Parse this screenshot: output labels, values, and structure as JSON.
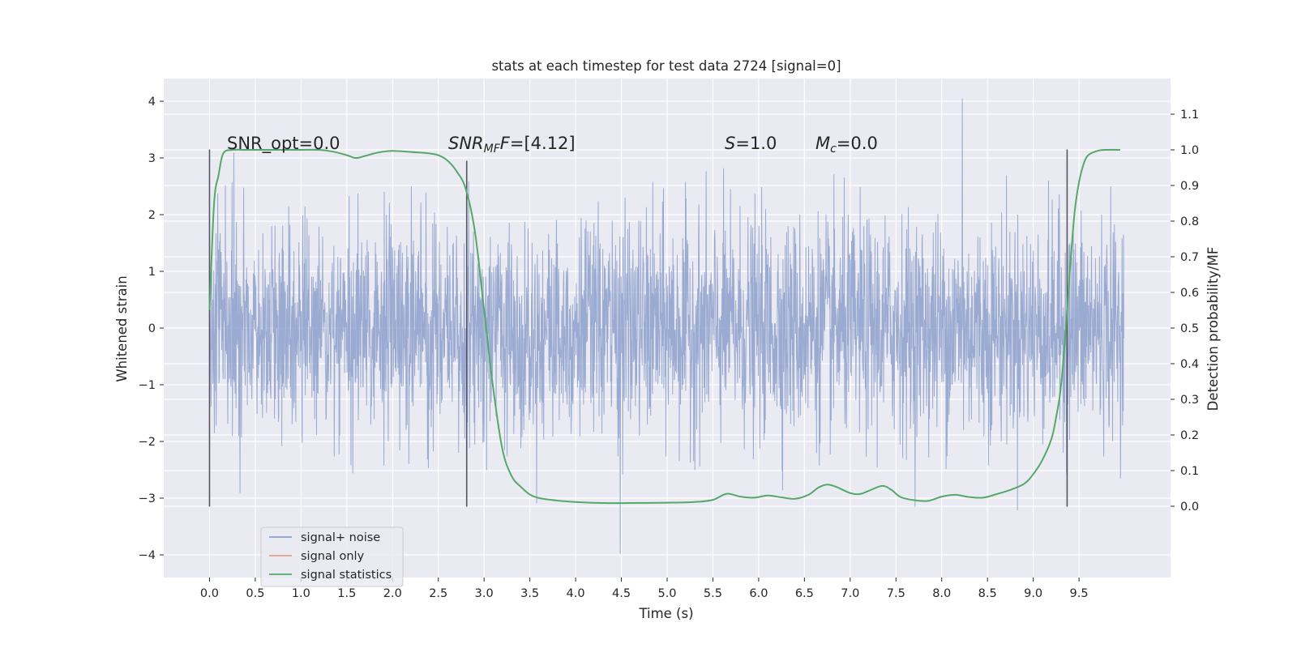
{
  "chart_data": {
    "type": "line",
    "title": "stats at each timestep for test data 2724 [signal=0]",
    "xlabel": "Time (s)",
    "ylabel": "Whitened strain",
    "ylabel_right": "Detection probability/MF",
    "xlim": [
      -0.5,
      10.5
    ],
    "ylim": [
      -4.4,
      4.4
    ],
    "ylim_right": [
      -0.2,
      1.2
    ],
    "x_ticks": [
      "0.0",
      "0.5",
      "1.0",
      "1.5",
      "2.0",
      "2.5",
      "3.0",
      "3.5",
      "4.0",
      "4.5",
      "5.0",
      "5.5",
      "6.0",
      "6.5",
      "7.0",
      "7.5",
      "8.0",
      "8.5",
      "9.0",
      "9.5"
    ],
    "y_ticks": [
      "4",
      "3",
      "2",
      "1",
      "0",
      "−1",
      "−2",
      "−3",
      "−4"
    ],
    "y_ticks_right": [
      "1.1",
      "1.0",
      "0.9",
      "0.8",
      "0.7",
      "0.6",
      "0.5",
      "0.4",
      "0.3",
      "0.2",
      "0.1",
      "0.0"
    ],
    "grid": true,
    "legend_position": "lower-left",
    "annotations": {
      "snr_opt": "SNR_opt=0.0",
      "snr_mf_sym": "SNR",
      "snr_mf_sub": "MF",
      "snr_mf_val": "=[4.12]",
      "s_sym": "S",
      "s_val": "=1.0",
      "mc_sym": "M",
      "mc_sub": "c",
      "mc_val": "=0.0"
    },
    "vertical_markers": [
      {
        "x": 0.0,
        "y": [
          -3.15,
          3.15
        ]
      },
      {
        "x": 2.81,
        "y": [
          -3.15,
          2.95
        ]
      },
      {
        "x": 9.37,
        "y": [
          -3.15,
          3.15
        ]
      }
    ],
    "noise": {
      "t_start": 0.0,
      "t_end": 9.99,
      "core_amplitude": 1.25,
      "typical_peak": 2.0,
      "max_peak": 4.05,
      "min_peak": -3.98
    },
    "series": [
      {
        "name": "signal+ noise",
        "color": "#8c9fcb",
        "axis": "left"
      },
      {
        "name": "signal only",
        "color": "#e0a488",
        "axis": "left",
        "x": [],
        "y": []
      },
      {
        "name": "signal statistics",
        "color": "#55a868",
        "axis": "right",
        "x": [
          0.0,
          0.05,
          0.1,
          0.15,
          0.25,
          0.4,
          0.6,
          0.8,
          1.0,
          1.2,
          1.35,
          1.5,
          1.6,
          1.7,
          1.85,
          2.0,
          2.2,
          2.4,
          2.5,
          2.6,
          2.7,
          2.8,
          2.9,
          3.0,
          3.1,
          3.2,
          3.3,
          3.4,
          3.5,
          3.6,
          3.8,
          4.0,
          4.3,
          4.6,
          5.0,
          5.3,
          5.5,
          5.65,
          5.8,
          5.95,
          6.1,
          6.25,
          6.4,
          6.55,
          6.65,
          6.75,
          6.85,
          7.0,
          7.1,
          7.2,
          7.35,
          7.45,
          7.55,
          7.7,
          7.85,
          8.0,
          8.15,
          8.3,
          8.45,
          8.6,
          8.75,
          8.9,
          9.0,
          9.1,
          9.2,
          9.25,
          9.3,
          9.35,
          9.4,
          9.45,
          9.5,
          9.55,
          9.6,
          9.7,
          9.8,
          9.95
        ],
        "y": [
          0.55,
          0.85,
          0.93,
          0.99,
          1.0,
          1.0,
          1.0,
          1.0,
          1.0,
          1.0,
          0.995,
          0.985,
          0.977,
          0.983,
          0.993,
          0.997,
          0.994,
          0.99,
          0.985,
          0.97,
          0.94,
          0.89,
          0.77,
          0.55,
          0.33,
          0.16,
          0.085,
          0.055,
          0.033,
          0.023,
          0.016,
          0.012,
          0.009,
          0.009,
          0.01,
          0.012,
          0.018,
          0.035,
          0.027,
          0.024,
          0.03,
          0.025,
          0.021,
          0.033,
          0.052,
          0.061,
          0.054,
          0.037,
          0.034,
          0.043,
          0.057,
          0.046,
          0.026,
          0.017,
          0.015,
          0.027,
          0.032,
          0.026,
          0.024,
          0.034,
          0.046,
          0.063,
          0.09,
          0.13,
          0.19,
          0.25,
          0.33,
          0.48,
          0.66,
          0.82,
          0.91,
          0.96,
          0.985,
          0.997,
          1.0,
          1.0
        ]
      }
    ]
  }
}
